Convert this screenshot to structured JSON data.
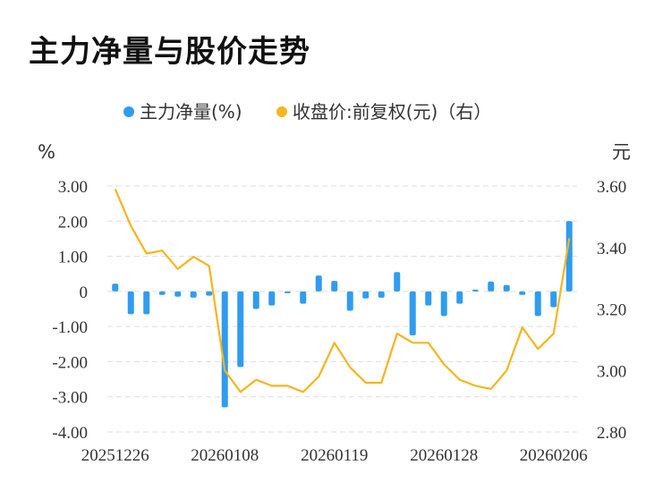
{
  "title": "主力净量与股价走势",
  "colors": {
    "bar": "#2f9cf0",
    "line": "#f5b51c",
    "grid": "#dddddd",
    "text": "#333333"
  },
  "chart_data": {
    "type": "bar",
    "left_unit": "%",
    "right_unit": "元",
    "legend": [
      "主力净量(%)",
      "收盘价:前复权(元)（右）"
    ],
    "legend_position": "top",
    "grid": true,
    "y_left": {
      "min": -4,
      "max": 3,
      "ticks": [
        "3.00",
        "2.00",
        "1.00",
        "0",
        "-1.00",
        "-2.00",
        "-3.00",
        "-4.00"
      ]
    },
    "y_right": {
      "min": 2.8,
      "max": 3.6,
      "ticks": [
        "3.60",
        "3.40",
        "3.20",
        "3.00",
        "2.80"
      ]
    },
    "x_labels": [
      "20251226",
      "20260108",
      "20260119",
      "20260128",
      "20260206"
    ],
    "x_label_indices": [
      0,
      7,
      14,
      21,
      28
    ],
    "series": [
      {
        "name": "主力净量(%)",
        "type": "bar",
        "values": [
          0.22,
          -0.65,
          -0.65,
          -0.1,
          -0.15,
          -0.18,
          -0.12,
          -3.3,
          -2.15,
          -0.5,
          -0.4,
          -0.05,
          -0.35,
          0.45,
          0.3,
          -0.55,
          -0.2,
          -0.18,
          0.55,
          -1.25,
          -0.4,
          -0.7,
          -0.35,
          0.05,
          0.28,
          0.18,
          -0.1,
          -0.7,
          -0.45,
          2.0
        ]
      },
      {
        "name": "收盘价:前复权(元)（右）",
        "type": "line",
        "values": [
          3.59,
          3.47,
          3.38,
          3.39,
          3.33,
          3.37,
          3.34,
          3.0,
          2.93,
          2.97,
          2.95,
          2.95,
          2.93,
          2.98,
          3.09,
          3.01,
          2.96,
          2.96,
          3.12,
          3.09,
          3.09,
          3.02,
          2.97,
          2.95,
          2.94,
          3.0,
          3.14,
          3.07,
          3.12,
          3.43
        ]
      }
    ]
  }
}
